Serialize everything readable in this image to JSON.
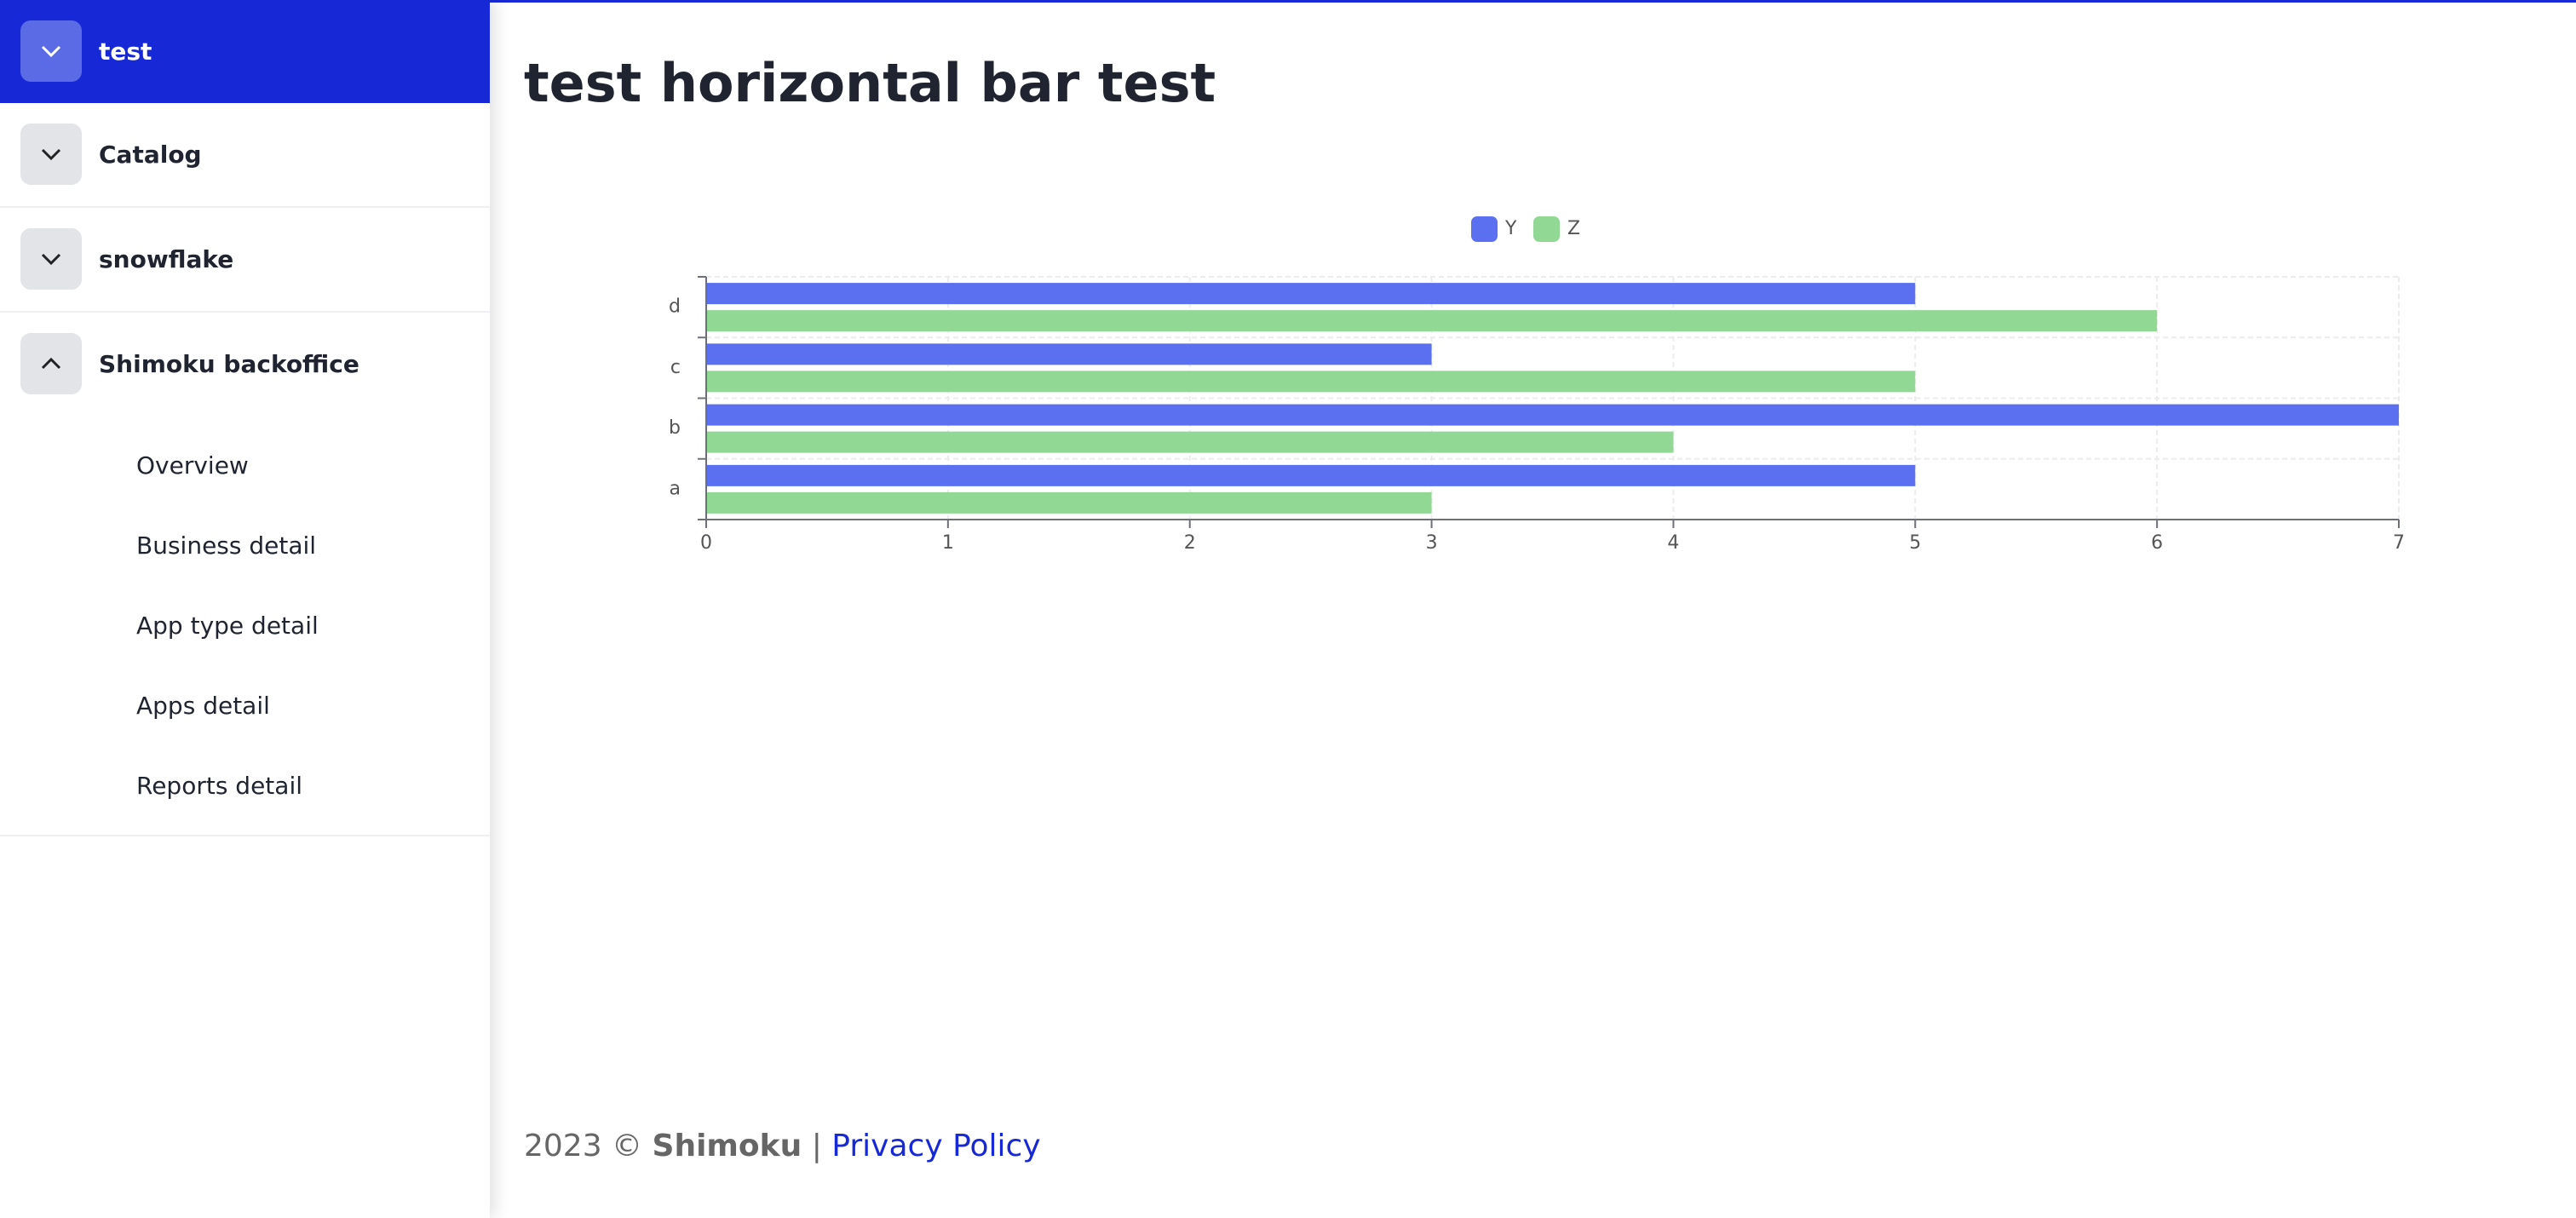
{
  "sidebar": {
    "sections": [
      {
        "label": "test"
      },
      {
        "label": "Catalog"
      },
      {
        "label": "snowflake"
      },
      {
        "label": "Shimoku backoffice",
        "items": [
          "Overview",
          "Business detail",
          "App type detail",
          "Apps detail",
          "Reports detail"
        ]
      }
    ]
  },
  "header": {
    "title": "test horizontal bar test"
  },
  "chart_data": {
    "type": "bar",
    "orientation": "horizontal",
    "categories": [
      "a",
      "b",
      "c",
      "d"
    ],
    "series": [
      {
        "name": "Y",
        "color": "#5b70f0",
        "values": [
          5,
          7,
          3,
          5
        ]
      },
      {
        "name": "Z",
        "color": "#91d895",
        "values": [
          3,
          4,
          5,
          6
        ]
      }
    ],
    "xlim": [
      0,
      7
    ],
    "xticks": [
      0,
      1,
      2,
      3,
      4,
      5,
      6,
      7
    ],
    "grid": true,
    "legend": "top"
  },
  "footer": {
    "year": "2023 ©",
    "brand": "Shimoku",
    "separator": "|",
    "link": "Privacy Policy"
  }
}
